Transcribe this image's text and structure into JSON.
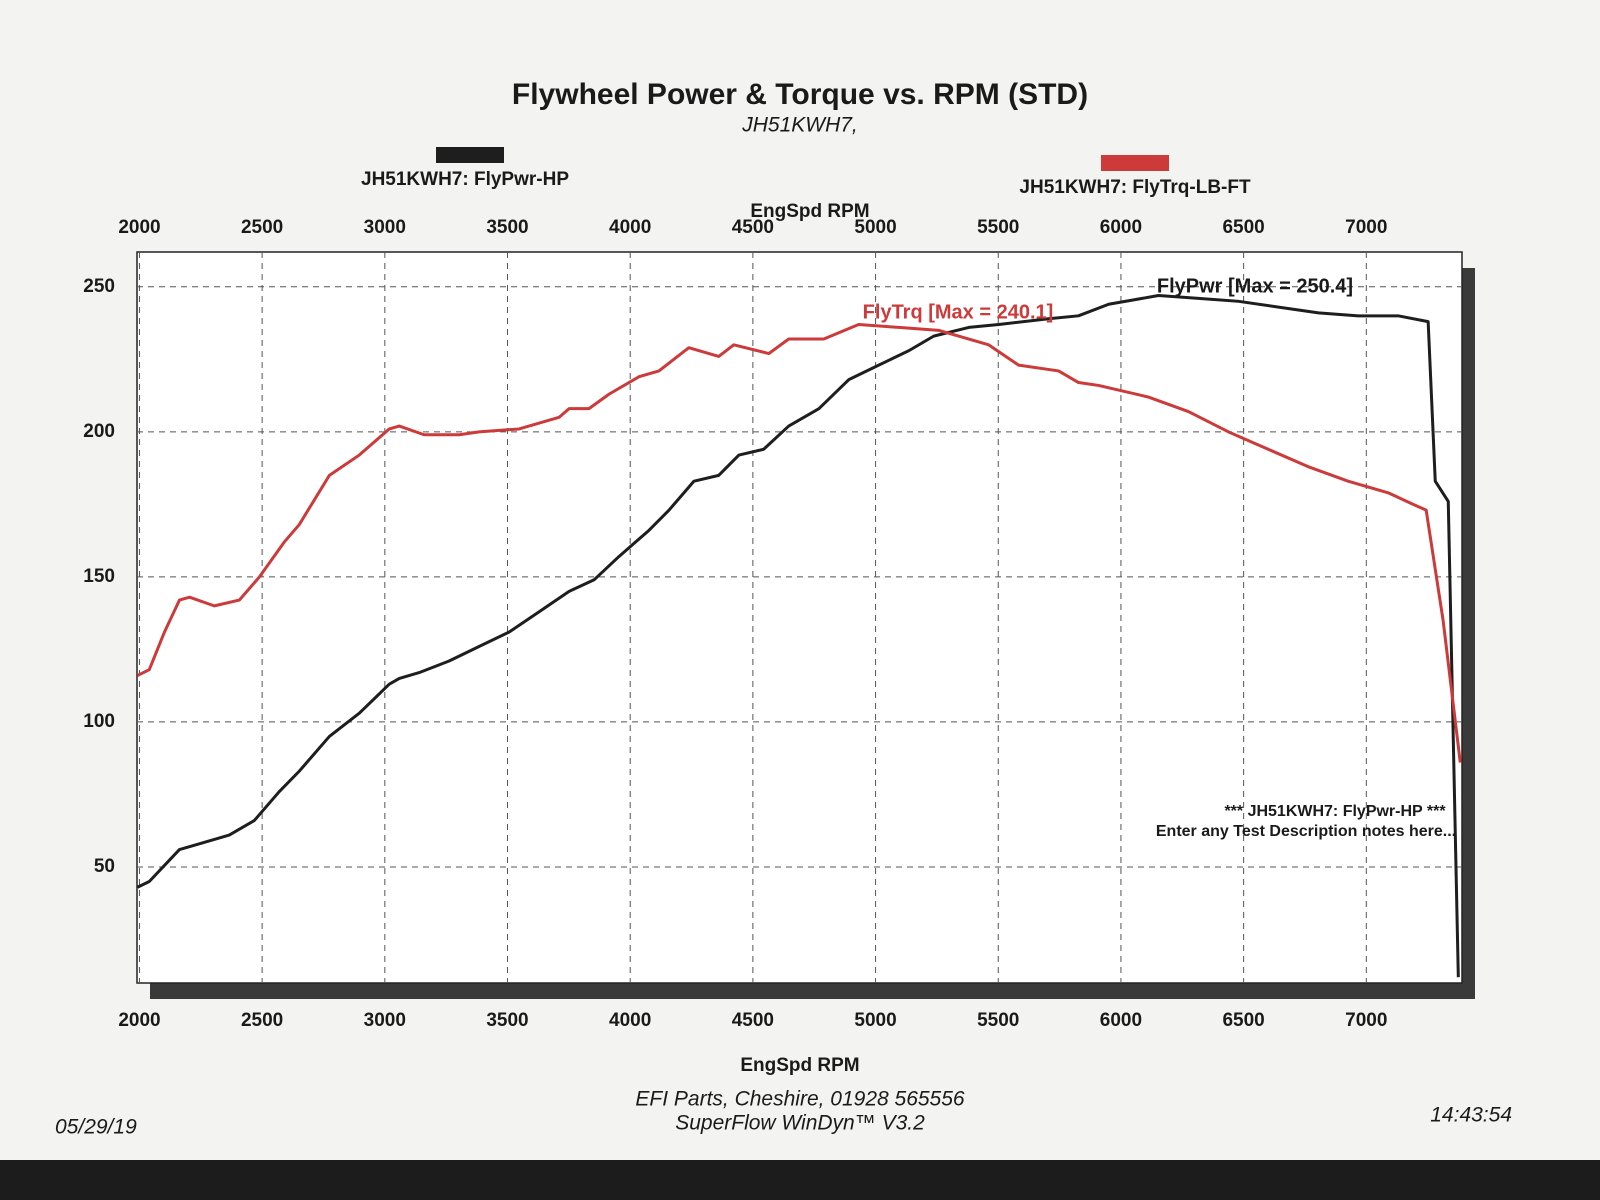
{
  "chart_data": {
    "type": "line",
    "title": "Flywheel Power & Torque vs. RPM (STD)",
    "subtitle": "JH51KWH7,",
    "xlabel": "EngSpd RPM",
    "xlim": [
      1990,
      7390
    ],
    "xticks": [
      2000,
      2500,
      3000,
      3500,
      4000,
      4500,
      5000,
      5500,
      6000,
      6500,
      7000
    ],
    "ylim": [
      10,
      262
    ],
    "yticks": [
      50,
      100,
      150,
      200,
      250
    ],
    "grid": true,
    "legend": "top",
    "series": [
      {
        "name": "JH51KWH7: FlyPwr-HP",
        "color": "#1e1e1e",
        "x": [
          1992,
          2040,
          2163,
          2244,
          2366,
          2468,
          2570,
          2651,
          2774,
          2896,
          3018,
          3059,
          3140,
          3262,
          3384,
          3507,
          3629,
          3751,
          3853,
          3954,
          4076,
          4158,
          4260,
          4361,
          4443,
          4544,
          4646,
          4769,
          4891,
          5013,
          5136,
          5237,
          5380,
          5502,
          5705,
          5827,
          5950,
          6153,
          6316,
          6479,
          6642,
          6805,
          6967,
          7130,
          7252,
          7281,
          7334,
          7375
        ],
        "values": [
          43,
          45,
          56,
          58,
          61,
          66,
          76,
          83,
          95,
          103,
          113,
          115,
          117,
          121,
          126,
          131,
          138,
          145,
          149,
          157,
          166,
          173,
          183,
          185,
          192,
          194,
          202,
          208,
          218,
          223,
          228,
          233,
          236,
          237,
          239,
          240,
          244,
          247,
          246,
          245,
          243,
          241,
          240,
          240,
          238,
          183,
          176,
          12
        ]
      },
      {
        "name": "JH51KWH7: FlyTrq-LB-FT",
        "color": "#cc3a3a",
        "x": [
          1992,
          2040,
          2102,
          2163,
          2204,
          2305,
          2407,
          2489,
          2590,
          2651,
          2774,
          2896,
          3018,
          3059,
          3160,
          3303,
          3384,
          3547,
          3710,
          3751,
          3832,
          3914,
          4036,
          4117,
          4239,
          4361,
          4422,
          4565,
          4646,
          4789,
          4931,
          5094,
          5257,
          5461,
          5583,
          5746,
          5827,
          5909,
          6112,
          6275,
          6438,
          6600,
          6763,
          6926,
          7089,
          7191,
          7244,
          7313,
          7383
        ],
        "values": [
          116,
          118,
          131,
          142,
          143,
          140,
          142,
          150,
          162,
          168,
          185,
          192,
          201,
          202,
          199,
          199,
          200,
          201,
          205,
          208,
          208,
          213,
          219,
          221,
          229,
          226,
          230,
          227,
          232,
          232,
          237,
          236,
          235,
          230,
          223,
          221,
          217,
          216,
          212,
          207,
          200,
          194,
          188,
          183,
          179,
          175,
          173,
          135,
          86
        ]
      }
    ],
    "annotations": [
      "FlyPwr [Max = 250.4]",
      "FlyTrq [Max = 240.1]",
      "*** JH51KWH7: FlyPwr-HP ***",
      "Enter any Test Description notes here..."
    ],
    "footer": [
      "EFI Parts, Cheshire, 01928 565556",
      "SuperFlow WinDyn™ V3.2"
    ],
    "date": "05/29/19",
    "time": "14:43:54"
  }
}
